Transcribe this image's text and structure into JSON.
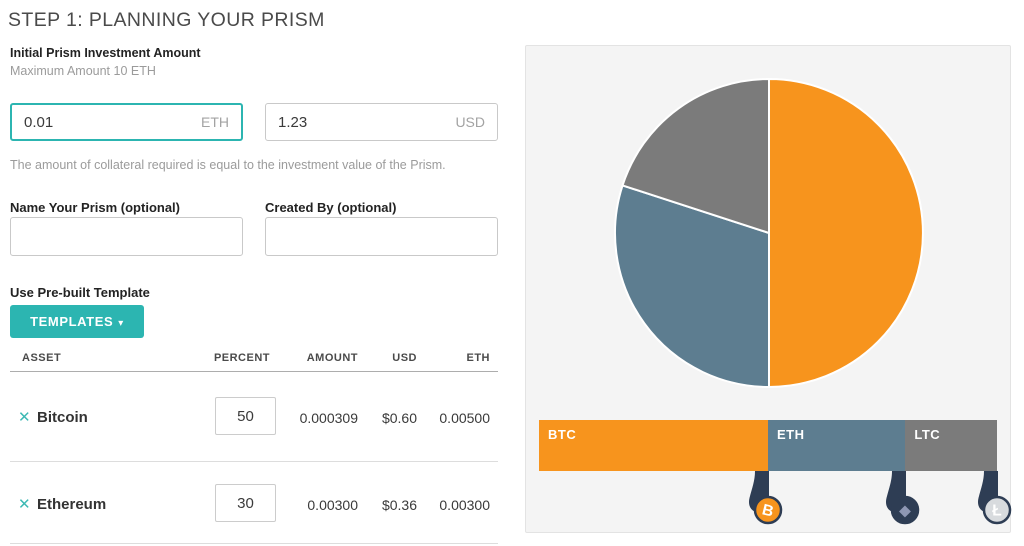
{
  "page": {
    "title": "STEP 1: PLANNING YOUR PRISM"
  },
  "investment": {
    "label": "Initial Prism Investment Amount",
    "sublabel": "Maximum Amount 10 ETH",
    "eth": {
      "value": "0.01",
      "unit": "ETH"
    },
    "usd": {
      "value": "1.23",
      "unit": "USD"
    },
    "helper": "The amount of collateral required is equal to the investment value of the Prism."
  },
  "name_field": {
    "label": "Name Your Prism (optional)",
    "value": ""
  },
  "created_by_field": {
    "label": "Created By (optional)",
    "value": ""
  },
  "template": {
    "label": "Use Pre-built Template",
    "button": "TEMPLATES",
    "caret": "▾"
  },
  "table": {
    "remove_icon": "✕",
    "headers": {
      "asset": "ASSET",
      "percent": "PERCENT",
      "amount": "AMOUNT",
      "usd": "USD",
      "eth": "ETH"
    },
    "rows": [
      {
        "asset": "Bitcoin",
        "percent": "50",
        "amount": "0.000309",
        "usd": "$0.60",
        "eth": "0.00500"
      },
      {
        "asset": "Ethereum",
        "percent": "30",
        "amount": "0.00300",
        "usd": "$0.36",
        "eth": "0.00300"
      }
    ]
  },
  "chart_data": {
    "type": "pie",
    "title": "Prism portfolio allocation",
    "legend_position": "bottom-bar",
    "start_at_top_clockwise": true,
    "separator_color": "#FFFFFF",
    "handle_color": "#2E3D54",
    "series": [
      {
        "name": "BTC",
        "value": 50,
        "color": "#F7941D",
        "coin": {
          "glyph": "B",
          "fill": "#F7941D",
          "glyph_color": "#FFFFFF",
          "tilt": 14
        }
      },
      {
        "name": "ETH",
        "value": 30,
        "color": "#5D7D90",
        "coin": {
          "glyph": "◆",
          "fill": "#2E3D54",
          "glyph_color": "#8E97B3",
          "tilt": 0
        }
      },
      {
        "name": "LTC",
        "value": 20,
        "color": "#7B7B7B",
        "coin": {
          "glyph": "Ł",
          "fill": "#D8DBDE",
          "glyph_color": "#FFFFFF",
          "tilt": 0
        }
      }
    ]
  }
}
